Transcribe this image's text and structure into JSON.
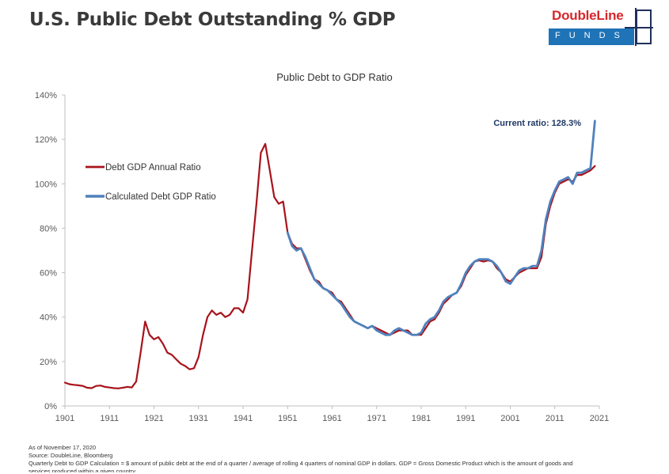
{
  "page": {
    "title": "U.S. Public Debt Outstanding % GDP"
  },
  "logo": {
    "top": "DoubleLine",
    "bottom": "FUNDS"
  },
  "footer": {
    "line1": "As of November 17, 2020",
    "line2": "Source:  DoubleLine, Bloomberg",
    "line3": "Quarterly Debt to GDP Calculation =  $ amount of public debt at the end of a quarter / average of rolling 4 quarters of nominal GDP in dollars. GDP = Gross Domestic Product which is the amount of goods and",
    "line4": "services produced within a given country."
  },
  "chart_data": {
    "type": "line",
    "title": "Public Debt to GDP Ratio",
    "xlabel": "",
    "ylabel": "",
    "xlim": [
      1901,
      2021
    ],
    "ylim": [
      0,
      140
    ],
    "x_ticks": [
      "1901",
      "1911",
      "1921",
      "1931",
      "1941",
      "1951",
      "1961",
      "1971",
      "1981",
      "1991",
      "2001",
      "2011",
      "2021"
    ],
    "y_ticks": [
      "0%",
      "20%",
      "40%",
      "60%",
      "80%",
      "100%",
      "120%",
      "140%"
    ],
    "grid": false,
    "legend_position": "left",
    "annotation": "Current ratio: 128.3%",
    "colors": {
      "annual": "#a8131b",
      "calculated": "#4f81bd",
      "annotation": "#1f3864"
    },
    "series": [
      {
        "name": "Debt GDP Annual Ratio",
        "points": [
          [
            1901,
            10.5
          ],
          [
            1902,
            9.8
          ],
          [
            1903,
            9.5
          ],
          [
            1904,
            9.3
          ],
          [
            1905,
            9.0
          ],
          [
            1906,
            8.2
          ],
          [
            1907,
            8.0
          ],
          [
            1908,
            9.0
          ],
          [
            1909,
            9.2
          ],
          [
            1910,
            8.6
          ],
          [
            1911,
            8.3
          ],
          [
            1912,
            8.0
          ],
          [
            1913,
            7.9
          ],
          [
            1914,
            8.2
          ],
          [
            1915,
            8.6
          ],
          [
            1916,
            8.3
          ],
          [
            1917,
            11.0
          ],
          [
            1918,
            24.0
          ],
          [
            1919,
            38.0
          ],
          [
            1920,
            32.0
          ],
          [
            1921,
            30.0
          ],
          [
            1922,
            31.0
          ],
          [
            1923,
            28.0
          ],
          [
            1924,
            24.0
          ],
          [
            1925,
            23.0
          ],
          [
            1926,
            21.0
          ],
          [
            1927,
            19.0
          ],
          [
            1928,
            18.0
          ],
          [
            1929,
            16.5
          ],
          [
            1930,
            17.0
          ],
          [
            1931,
            22.0
          ],
          [
            1932,
            32.0
          ],
          [
            1933,
            40.0
          ],
          [
            1934,
            43.0
          ],
          [
            1935,
            41.0
          ],
          [
            1936,
            42.0
          ],
          [
            1937,
            40.0
          ],
          [
            1938,
            41.0
          ],
          [
            1939,
            44.0
          ],
          [
            1940,
            44.0
          ],
          [
            1941,
            42.0
          ],
          [
            1942,
            48.0
          ],
          [
            1943,
            70.0
          ],
          [
            1944,
            91.0
          ],
          [
            1945,
            114.0
          ],
          [
            1946,
            118.0
          ],
          [
            1947,
            106.0
          ],
          [
            1948,
            94.0
          ],
          [
            1949,
            91.0
          ],
          [
            1950,
            92.0
          ],
          [
            1951,
            78.0
          ],
          [
            1952,
            73.0
          ],
          [
            1953,
            71.0
          ],
          [
            1954,
            71.0
          ],
          [
            1955,
            66.0
          ],
          [
            1956,
            61.0
          ],
          [
            1957,
            57.0
          ],
          [
            1958,
            56.0
          ],
          [
            1959,
            53.0
          ],
          [
            1960,
            52.0
          ],
          [
            1961,
            51.0
          ],
          [
            1962,
            48.0
          ],
          [
            1963,
            47.0
          ],
          [
            1964,
            44.0
          ],
          [
            1965,
            41.0
          ],
          [
            1966,
            38.0
          ],
          [
            1967,
            37.0
          ],
          [
            1968,
            36.0
          ],
          [
            1969,
            35.0
          ],
          [
            1970,
            36.0
          ],
          [
            1971,
            35.0
          ],
          [
            1972,
            34.0
          ],
          [
            1973,
            33.0
          ],
          [
            1974,
            32.0
          ],
          [
            1975,
            33.0
          ],
          [
            1976,
            34.0
          ],
          [
            1977,
            34.0
          ],
          [
            1978,
            34.0
          ],
          [
            1979,
            32.0
          ],
          [
            1980,
            32.0
          ],
          [
            1981,
            32.0
          ],
          [
            1982,
            35.0
          ],
          [
            1983,
            38.0
          ],
          [
            1984,
            39.0
          ],
          [
            1985,
            42.0
          ],
          [
            1986,
            46.0
          ],
          [
            1987,
            48.0
          ],
          [
            1988,
            50.0
          ],
          [
            1989,
            51.0
          ],
          [
            1990,
            54.0
          ],
          [
            1991,
            59.0
          ],
          [
            1992,
            62.0
          ],
          [
            1993,
            65.0
          ],
          [
            1994,
            65.5
          ],
          [
            1995,
            65.0
          ],
          [
            1996,
            65.5
          ],
          [
            1997,
            65.0
          ],
          [
            1998,
            62.0
          ],
          [
            1999,
            60.0
          ],
          [
            2000,
            57.0
          ],
          [
            2001,
            56.0
          ],
          [
            2002,
            58.0
          ],
          [
            2003,
            60.0
          ],
          [
            2004,
            61.0
          ],
          [
            2005,
            62.0
          ],
          [
            2006,
            62.0
          ],
          [
            2007,
            62.0
          ],
          [
            2008,
            67.0
          ],
          [
            2009,
            82.0
          ],
          [
            2010,
            90.0
          ],
          [
            2011,
            96.0
          ],
          [
            2012,
            100.0
          ],
          [
            2013,
            101.0
          ],
          [
            2014,
            102.0
          ],
          [
            2015,
            101.0
          ],
          [
            2016,
            104.0
          ],
          [
            2017,
            104.0
          ],
          [
            2018,
            105.0
          ],
          [
            2019,
            106.0
          ],
          [
            2020,
            108.0
          ]
        ]
      },
      {
        "name": "Calculated Debt GDP Ratio",
        "points": [
          [
            1951,
            78.0
          ],
          [
            1952,
            72.0
          ],
          [
            1953,
            70.0
          ],
          [
            1954,
            71.0
          ],
          [
            1955,
            67.0
          ],
          [
            1956,
            62.0
          ],
          [
            1957,
            57.0
          ],
          [
            1958,
            55.0
          ],
          [
            1959,
            53.0
          ],
          [
            1960,
            52.0
          ],
          [
            1961,
            50.0
          ],
          [
            1962,
            48.0
          ],
          [
            1963,
            46.0
          ],
          [
            1964,
            43.0
          ],
          [
            1965,
            40.0
          ],
          [
            1966,
            38.0
          ],
          [
            1967,
            37.0
          ],
          [
            1968,
            36.0
          ],
          [
            1969,
            35.0
          ],
          [
            1970,
            36.0
          ],
          [
            1971,
            34.0
          ],
          [
            1972,
            33.0
          ],
          [
            1973,
            32.0
          ],
          [
            1974,
            32.0
          ],
          [
            1975,
            34.0
          ],
          [
            1976,
            35.0
          ],
          [
            1977,
            34.0
          ],
          [
            1978,
            33.0
          ],
          [
            1979,
            32.0
          ],
          [
            1980,
            32.0
          ],
          [
            1981,
            33.0
          ],
          [
            1982,
            37.0
          ],
          [
            1983,
            39.0
          ],
          [
            1984,
            40.0
          ],
          [
            1985,
            43.0
          ],
          [
            1986,
            47.0
          ],
          [
            1987,
            49.0
          ],
          [
            1988,
            50.0
          ],
          [
            1989,
            51.0
          ],
          [
            1990,
            55.0
          ],
          [
            1991,
            60.0
          ],
          [
            1992,
            63.0
          ],
          [
            1993,
            65.0
          ],
          [
            1994,
            66.0
          ],
          [
            1995,
            66.0
          ],
          [
            1996,
            66.0
          ],
          [
            1997,
            65.0
          ],
          [
            1998,
            63.0
          ],
          [
            1999,
            60.0
          ],
          [
            2000,
            56.0
          ],
          [
            2001,
            55.0
          ],
          [
            2002,
            58.0
          ],
          [
            2003,
            61.0
          ],
          [
            2004,
            62.0
          ],
          [
            2005,
            62.0
          ],
          [
            2006,
            63.0
          ],
          [
            2007,
            63.0
          ],
          [
            2008,
            70.0
          ],
          [
            2009,
            84.0
          ],
          [
            2010,
            92.0
          ],
          [
            2011,
            97.0
          ],
          [
            2012,
            101.0
          ],
          [
            2013,
            102.0
          ],
          [
            2014,
            103.0
          ],
          [
            2015,
            100.0
          ],
          [
            2016,
            105.0
          ],
          [
            2017,
            105.0
          ],
          [
            2018,
            106.0
          ],
          [
            2019,
            107.0
          ],
          [
            2020,
            128.3
          ]
        ]
      }
    ]
  }
}
